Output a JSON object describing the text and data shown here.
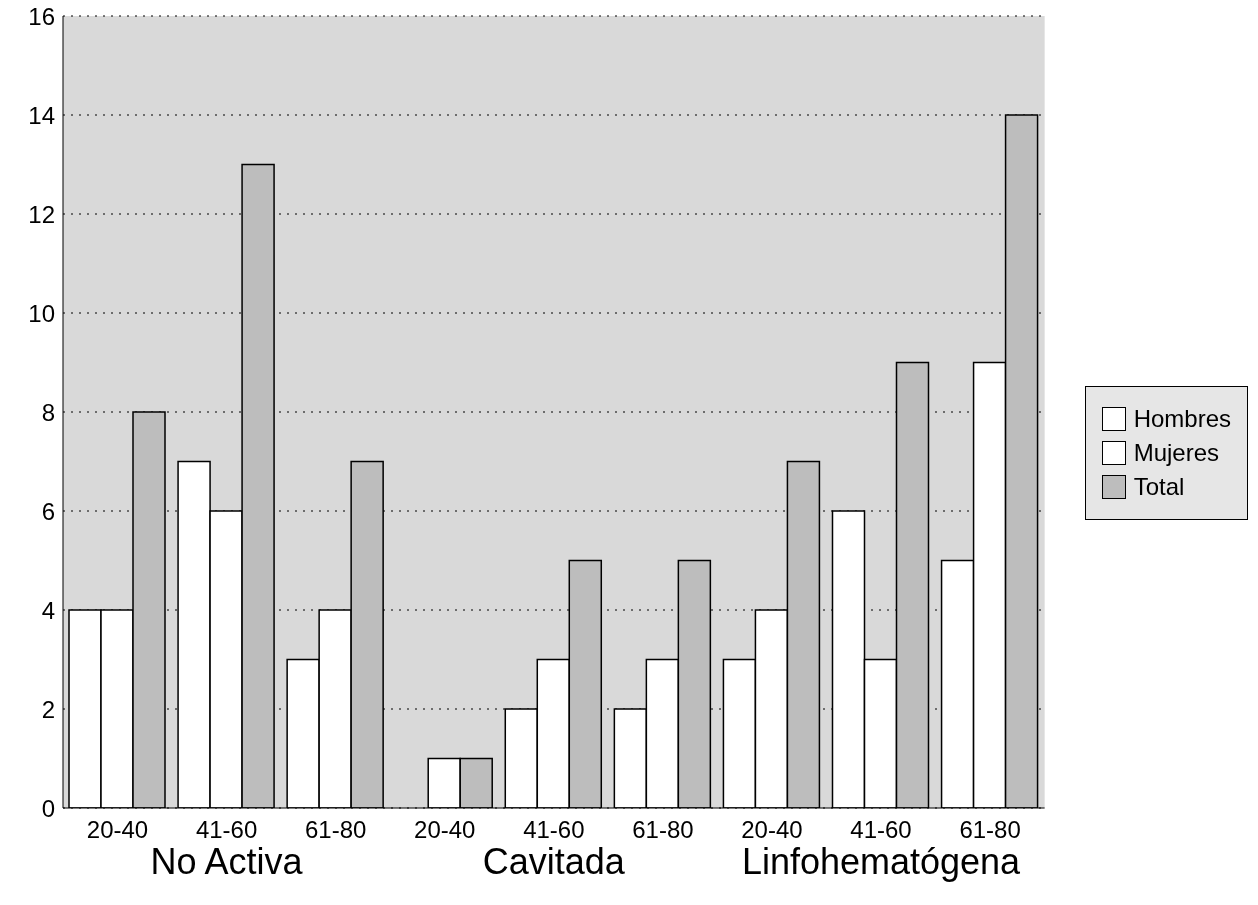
{
  "chart_data": {
    "type": "bar",
    "categories": [
      "20-40",
      "41-60",
      "61-80",
      "20-40",
      "41-60",
      "61-80",
      "20-40",
      "41-60",
      "61-80"
    ],
    "series": [
      {
        "name": "Hombres",
        "color": "#ffffff",
        "values": [
          4,
          7,
          3,
          0,
          2,
          2,
          3,
          6,
          5
        ]
      },
      {
        "name": "Mujeres",
        "color": "#ffffff",
        "values": [
          4,
          6,
          4,
          1,
          3,
          3,
          4,
          3,
          9
        ]
      },
      {
        "name": "Total",
        "color": "#bdbdbd",
        "values": [
          8,
          13,
          7,
          1,
          5,
          5,
          7,
          9,
          14
        ]
      }
    ],
    "annotations": [
      "No Activa",
      "Cavitada",
      "Linfohematógena"
    ],
    "ylim": [
      0,
      16
    ],
    "yticks": [
      0,
      2,
      4,
      6,
      8,
      10,
      12,
      14,
      16
    ],
    "grid": "y",
    "legend": "right"
  }
}
